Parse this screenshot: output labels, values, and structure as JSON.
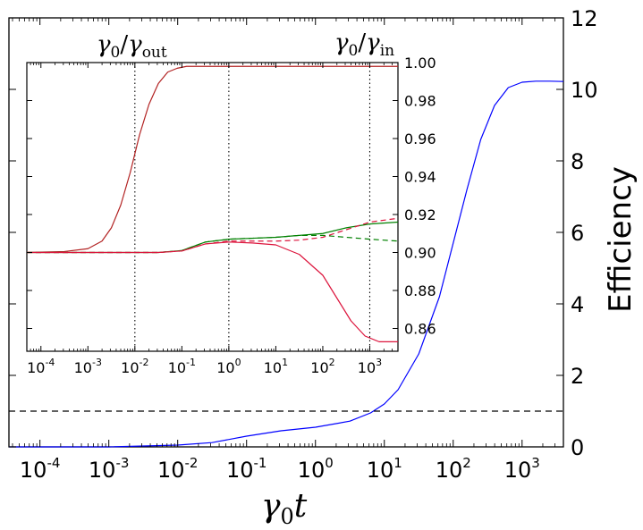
{
  "chart_data": [
    {
      "name": "main",
      "type": "line",
      "x_scale": "log10",
      "xlim": [
        -4.45,
        3.6
      ],
      "ylim": [
        0,
        12
      ],
      "xticks": [
        {
          "exp": -4,
          "base": "10",
          "sup": "-4"
        },
        {
          "exp": -3,
          "base": "10",
          "sup": "-3"
        },
        {
          "exp": -2,
          "base": "10",
          "sup": "-2"
        },
        {
          "exp": -1,
          "base": "10",
          "sup": "-1"
        },
        {
          "exp": 0,
          "base": "10",
          "sup": "0"
        },
        {
          "exp": 1,
          "base": "10",
          "sup": "1"
        },
        {
          "exp": 2,
          "base": "10",
          "sup": "2"
        },
        {
          "exp": 3,
          "base": "10",
          "sup": "3"
        }
      ],
      "yticks": [
        0,
        2,
        4,
        6,
        8,
        10,
        12
      ],
      "ytick_labels": [
        "0",
        "2",
        "4",
        "6",
        "8",
        "10",
        "12"
      ],
      "xlabel_base": "γ",
      "xlabel_sub": "0",
      "xlabel_var": "t",
      "ylabel": "Efficiency",
      "y_axis_side": "right",
      "series": [
        {
          "name": "efficiency",
          "color": "#0000ff",
          "style": "solid",
          "log10x": [
            -4.45,
            -3.0,
            -2.0,
            -1.5,
            -1.0,
            -0.5,
            0.0,
            0.5,
            0.8,
            1.0,
            1.2,
            1.5,
            1.8,
            2.0,
            2.2,
            2.4,
            2.6,
            2.8,
            3.0,
            3.2,
            3.4,
            3.6
          ],
          "y": [
            0.0,
            0.0,
            0.05,
            0.12,
            0.3,
            0.45,
            0.55,
            0.72,
            0.95,
            1.2,
            1.6,
            2.6,
            4.2,
            5.7,
            7.2,
            8.6,
            9.55,
            10.05,
            10.2,
            10.23,
            10.23,
            10.22
          ]
        },
        {
          "name": "reference",
          "color": "#000000",
          "style": "dashed",
          "log10x": [
            -4.45,
            3.6
          ],
          "y": [
            1,
            1
          ]
        }
      ]
    },
    {
      "name": "inset",
      "type": "line",
      "x_scale": "log10",
      "xlim": [
        -4.3,
        3.6
      ],
      "ylim": [
        0.848,
        1.0
      ],
      "xticks": [
        {
          "exp": -4,
          "base": "10",
          "sup": "-4"
        },
        {
          "exp": -3,
          "base": "10",
          "sup": "-3"
        },
        {
          "exp": -2,
          "base": "10",
          "sup": "-2"
        },
        {
          "exp": -1,
          "base": "10",
          "sup": "-1"
        },
        {
          "exp": 0,
          "base": "10",
          "sup": "0"
        },
        {
          "exp": 1,
          "base": "10",
          "sup": "1"
        },
        {
          "exp": 2,
          "base": "10",
          "sup": "2"
        },
        {
          "exp": 3,
          "base": "10",
          "sup": "3"
        }
      ],
      "yticks": [
        0.86,
        0.88,
        0.9,
        0.92,
        0.94,
        0.96,
        0.98,
        1.0
      ],
      "ytick_labels": [
        "0.86",
        "0.88",
        "0.90",
        "0.92",
        "0.94",
        "0.96",
        "0.98",
        "1.00"
      ],
      "vlines_log10x": [
        -2,
        0,
        3
      ],
      "annotations": [
        {
          "base": "γ",
          "sub": "0",
          "slash": "/",
          "base2": "γ",
          "sub2": "out"
        },
        {
          "base": "γ",
          "sub": "0",
          "slash": "/",
          "base2": "γ",
          "sub2": "in"
        }
      ],
      "series": [
        {
          "name": "upper",
          "color": "#b22222",
          "style": "solid",
          "log10x": [
            -4.3,
            -3.5,
            -3.0,
            -2.7,
            -2.5,
            -2.3,
            -2.1,
            -2.0,
            -1.9,
            -1.7,
            -1.5,
            -1.3,
            -1.1,
            -0.9,
            -0.5,
            0.0,
            1.0,
            2.0,
            3.0,
            3.6
          ],
          "y": [
            0.9,
            0.9005,
            0.902,
            0.906,
            0.913,
            0.925,
            0.942,
            0.952,
            0.962,
            0.978,
            0.989,
            0.995,
            0.997,
            0.998,
            0.998,
            0.998,
            0.998,
            0.998,
            0.998,
            0.998
          ]
        },
        {
          "name": "green-solid",
          "color": "#008000",
          "style": "solid",
          "log10x": [
            -4.3,
            -2.0,
            -1.5,
            -1.0,
            -0.5,
            0.0,
            0.5,
            1.0,
            1.5,
            2.0,
            2.5,
            3.0,
            3.6
          ],
          "y": [
            0.9,
            0.9,
            0.9,
            0.901,
            0.9055,
            0.907,
            0.9075,
            0.908,
            0.909,
            0.91,
            0.913,
            0.915,
            0.916
          ]
        },
        {
          "name": "green-dashed",
          "color": "#008000",
          "style": "dashed",
          "log10x": [
            -4.3,
            -2.0,
            -1.5,
            -1.0,
            -0.5,
            0.0,
            0.5,
            1.0,
            1.5,
            2.0,
            2.5,
            3.0,
            3.6
          ],
          "y": [
            0.9,
            0.9,
            0.9,
            0.901,
            0.9055,
            0.907,
            0.9075,
            0.908,
            0.909,
            0.909,
            0.908,
            0.907,
            0.906
          ]
        },
        {
          "name": "crimson-dashed",
          "color": "#dc143c",
          "style": "dashed",
          "log10x": [
            -4.3,
            -2.0,
            -1.5,
            -1.0,
            -0.5,
            0.0,
            0.5,
            1.0,
            1.5,
            2.0,
            2.5,
            3.0,
            3.6
          ],
          "y": [
            0.9,
            0.9,
            0.9,
            0.9008,
            0.9045,
            0.906,
            0.906,
            0.906,
            0.9065,
            0.908,
            0.912,
            0.916,
            0.918
          ]
        },
        {
          "name": "crimson-solid",
          "color": "#dc143c",
          "style": "solid",
          "log10x": [
            -4.3,
            -2.0,
            -1.5,
            -1.0,
            -0.5,
            0.0,
            0.5,
            1.0,
            1.5,
            2.0,
            2.3,
            2.6,
            2.9,
            3.2,
            3.6
          ],
          "y": [
            0.9,
            0.9,
            0.9,
            0.9008,
            0.9045,
            0.9055,
            0.905,
            0.904,
            0.899,
            0.888,
            0.876,
            0.864,
            0.856,
            0.853,
            0.853
          ]
        }
      ]
    }
  ]
}
